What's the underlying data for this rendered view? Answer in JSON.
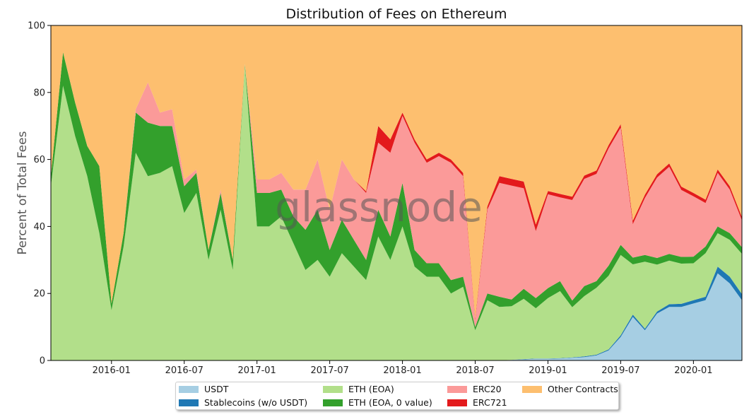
{
  "chart_data": {
    "type": "area",
    "stacked": true,
    "title": "Distribution of Fees on Ethereum",
    "ylabel": "Percent of Total Fees",
    "xlabel": "",
    "ylim": [
      0,
      100
    ],
    "yticks": [
      "0",
      "20",
      "40",
      "60",
      "80",
      "100"
    ],
    "xticks": [
      "2016-01",
      "2016-07",
      "2017-01",
      "2017-07",
      "2018-01",
      "2018-07",
      "2019-01",
      "2019-07",
      "2020-01"
    ],
    "xrange": [
      "2015-08",
      "2020-05"
    ],
    "watermark": "glassnode",
    "grid": false,
    "legend_position": "bottom-center",
    "x": [
      "2015-08",
      "2015-09",
      "2015-10",
      "2015-11",
      "2015-12",
      "2016-01",
      "2016-02",
      "2016-03",
      "2016-04",
      "2016-05",
      "2016-06",
      "2016-07",
      "2016-08",
      "2016-09",
      "2016-10",
      "2016-11",
      "2016-12",
      "2017-01",
      "2017-02",
      "2017-03",
      "2017-04",
      "2017-05",
      "2017-06",
      "2017-07",
      "2017-08",
      "2017-09",
      "2017-10",
      "2017-11",
      "2017-12",
      "2018-01",
      "2018-02",
      "2018-03",
      "2018-04",
      "2018-05",
      "2018-06",
      "2018-07",
      "2018-08",
      "2018-09",
      "2018-10",
      "2018-11",
      "2018-12",
      "2019-01",
      "2019-02",
      "2019-03",
      "2019-04",
      "2019-05",
      "2019-06",
      "2019-07",
      "2019-08",
      "2019-09",
      "2019-10",
      "2019-11",
      "2019-12",
      "2020-01",
      "2020-02",
      "2020-03",
      "2020-04",
      "2020-05"
    ],
    "series": [
      {
        "name": "USDT",
        "color": "#a6cee3",
        "values": [
          0,
          0,
          0,
          0,
          0,
          0,
          0,
          0,
          0,
          0,
          0,
          0,
          0,
          0,
          0,
          0,
          0,
          0,
          0,
          0,
          0,
          0,
          0,
          0,
          0,
          0,
          0,
          0,
          0,
          0,
          0,
          0,
          0,
          0,
          0,
          0,
          0,
          0,
          0.2,
          0.3,
          0.5,
          0.5,
          0.6,
          0.8,
          1,
          1.5,
          3,
          7,
          13,
          9,
          14,
          16,
          16,
          17,
          18,
          26,
          23,
          18
        ]
      },
      {
        "name": "Stablecoins (w/o USDT)",
        "color": "#1f78b4",
        "values": [
          0,
          0,
          0,
          0,
          0,
          0,
          0,
          0,
          0,
          0,
          0,
          0,
          0,
          0,
          0,
          0,
          0,
          0,
          0,
          0,
          0,
          0,
          0,
          0,
          0,
          0,
          0,
          0,
          0,
          0,
          0,
          0,
          0,
          0,
          0,
          0,
          0,
          0,
          0,
          0.1,
          0.1,
          0.1,
          0.1,
          0.1,
          0.2,
          0.2,
          0.3,
          0.5,
          0.7,
          0.5,
          0.6,
          0.8,
          0.9,
          1,
          1,
          2,
          2,
          1.8
        ]
      },
      {
        "name": "ETH (EOA)",
        "color": "#b2df8a",
        "values": [
          52,
          82,
          67,
          55,
          38,
          15,
          34,
          62,
          55,
          56,
          58,
          44,
          50,
          30,
          45,
          27,
          88,
          40,
          40,
          43,
          35,
          27,
          30,
          25,
          32,
          28,
          24,
          37,
          30,
          40,
          28,
          25,
          25,
          20,
          22,
          9,
          18,
          16,
          16,
          18,
          15,
          18,
          20,
          15,
          18,
          20,
          22,
          24,
          15,
          20,
          14,
          13,
          12,
          11,
          13,
          10,
          11,
          12
        ]
      },
      {
        "name": "ETH (EOA, 0 value)",
        "color": "#33a02c",
        "values": [
          3,
          10,
          10,
          9,
          20,
          2,
          4,
          12,
          16,
          14,
          12,
          8,
          6,
          3,
          5,
          3,
          0.5,
          10,
          10,
          8,
          8,
          12,
          15,
          8,
          10,
          8,
          6,
          8,
          7,
          13,
          5,
          4,
          4,
          4,
          3,
          1,
          2,
          3,
          2,
          3,
          3,
          3,
          3,
          2,
          3,
          2,
          3,
          3,
          2,
          2,
          2,
          2,
          2,
          2,
          2,
          2,
          2,
          2
        ]
      },
      {
        "name": "ERC20",
        "color": "#fb9a99",
        "values": [
          0,
          0,
          0,
          0,
          0,
          0,
          0,
          1,
          12,
          4,
          5,
          2,
          1,
          0,
          1,
          0,
          0,
          4,
          4,
          5,
          8,
          12,
          15,
          12,
          18,
          18,
          20,
          20,
          25,
          20,
          32,
          30,
          32,
          35,
          30,
          2,
          25,
          34,
          34,
          30,
          20,
          28,
          25,
          30,
          32,
          32,
          35,
          35,
          10,
          17,
          24,
          26,
          20,
          18,
          13,
          16,
          13,
          8
        ]
      },
      {
        "name": "ERC721",
        "color": "#e31a1c",
        "values": [
          0,
          0,
          0,
          0,
          0,
          0,
          0,
          0,
          0,
          0,
          0,
          0,
          0,
          0,
          0,
          0,
          0,
          0,
          0,
          0,
          0,
          0,
          0,
          0,
          0,
          0,
          0.5,
          5,
          4,
          1,
          1,
          1,
          1,
          1,
          1,
          0.5,
          1,
          2,
          2,
          2,
          2,
          1,
          1,
          1,
          1,
          1,
          1,
          1,
          1,
          1,
          1,
          1,
          1,
          1,
          1,
          1,
          1,
          1
        ]
      },
      {
        "name": "Other Contracts",
        "color": "#fdbf6f",
        "values": [
          45,
          8,
          23,
          36,
          42,
          83,
          62,
          25,
          17,
          26,
          25,
          46,
          43,
          67,
          49,
          70,
          11.5,
          46,
          46,
          44,
          49,
          49,
          40,
          55,
          40,
          46,
          49.5,
          30,
          34,
          26,
          34,
          40,
          38,
          40,
          44,
          87.5,
          54,
          45,
          45.8,
          46.6,
          59.4,
          49.4,
          50.3,
          51.1,
          44.8,
          43.3,
          35.7,
          29.5,
          58.3,
          50.5,
          44.4,
          41.2,
          48.1,
          50,
          52,
          43,
          48,
          57.2
        ]
      }
    ]
  },
  "legend": {
    "items": [
      {
        "label": "USDT",
        "color": "#a6cee3"
      },
      {
        "label": "Stablecoins (w/o USDT)",
        "color": "#1f78b4"
      },
      {
        "label": "ETH (EOA)",
        "color": "#b2df8a"
      },
      {
        "label": "ETH (EOA, 0 value)",
        "color": "#33a02c"
      },
      {
        "label": "ERC20",
        "color": "#fb9a99"
      },
      {
        "label": "ERC721",
        "color": "#e31a1c"
      },
      {
        "label": "Other Contracts",
        "color": "#fdbf6f"
      }
    ]
  }
}
